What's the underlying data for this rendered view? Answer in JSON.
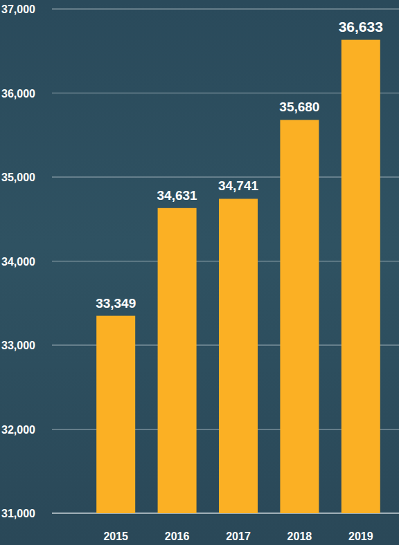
{
  "chart_data": {
    "type": "bar",
    "categories": [
      "2015",
      "2016",
      "2017",
      "2018",
      "2019"
    ],
    "values": [
      33349,
      34631,
      34741,
      35680,
      36633
    ],
    "value_labels": [
      "33,349",
      "34,631",
      "34,741",
      "35,680",
      "36,633"
    ],
    "color": "#fbb024",
    "ylim": [
      31000,
      37000
    ],
    "yticks": [
      {
        "value": 31000,
        "label": "31,000"
      },
      {
        "value": 32000,
        "label": "32,000"
      },
      {
        "value": 33000,
        "label": "33,000"
      },
      {
        "value": 34000,
        "label": "34,000"
      },
      {
        "value": 35000,
        "label": "35,000"
      },
      {
        "value": 36000,
        "label": "36,000"
      },
      {
        "value": 37000,
        "label": "37,000"
      }
    ],
    "grid": true,
    "data_labels": true
  }
}
